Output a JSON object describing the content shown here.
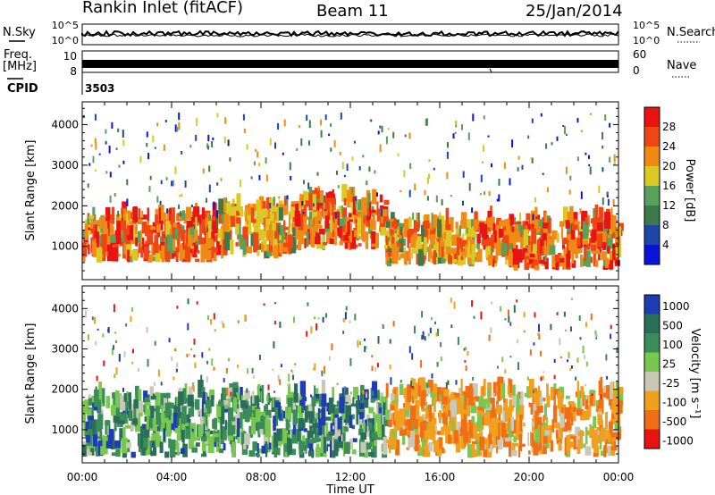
{
  "header": {
    "station": "Rankin Inlet (fitACF)",
    "beam": "Beam 11",
    "date": "25/Jan/2014"
  },
  "params": {
    "nsky_label": "N.Sky",
    "nsky_ticks": [
      "10^5",
      "10^0"
    ],
    "nsearch_label": "N.Search",
    "nsearch_ticks": [
      "10^5",
      "10^0"
    ],
    "freq_label_1": "Freq.",
    "freq_label_2": "[MHz]",
    "freq_ticks": [
      "10",
      "8"
    ],
    "nave_label": "Nave",
    "nave_ticks": [
      "60",
      "0"
    ],
    "cpid_label": "CPID",
    "cpid_value": "3503"
  },
  "colors": {
    "power_scale": [
      "#0a14d8",
      "#1e46a8",
      "#3c7a4a",
      "#5aa05a",
      "#dcc822",
      "#f08a14",
      "#f04614",
      "#e81414"
    ],
    "velocity_scale": [
      "#1e3cb4",
      "#2a6e5a",
      "#3c8c5a",
      "#78c850",
      "#c8c8b4",
      "#f0a01e",
      "#f06e14",
      "#e81414"
    ],
    "data_green": "#3c8c64",
    "data_orange": "#ec7a1a",
    "data_red": "#ea2a14"
  },
  "chart_data": [
    {
      "type": "heatmap",
      "panel": "power",
      "xlabel": "Time UT",
      "ylabel": "Slant Range [km]",
      "x_ticks": [
        "00:00",
        "04:00",
        "08:00",
        "12:00",
        "16:00",
        "20:00",
        "00:00"
      ],
      "x_range_hours": [
        0,
        24
      ],
      "y_ticks": [
        1000,
        2000,
        3000,
        4000
      ],
      "ylim": [
        180,
        4560
      ],
      "colorbar": {
        "label": "Power [dB]",
        "ticks": [
          4,
          8,
          12,
          16,
          20,
          24,
          28
        ],
        "range": [
          0,
          32
        ]
      },
      "echo_bands": [
        {
          "t_start": 0.0,
          "t_end": 6.0,
          "r_low": 600,
          "r_high": 1700,
          "level": "high"
        },
        {
          "t_start": 6.0,
          "t_end": 9.5,
          "r_low": 700,
          "r_high": 1900,
          "level": "medium"
        },
        {
          "t_start": 9.5,
          "t_end": 13.5,
          "r_low": 900,
          "r_high": 2100,
          "level": "high"
        },
        {
          "t_start": 13.5,
          "t_end": 17.5,
          "r_low": 500,
          "r_high": 1500,
          "level": "medium"
        },
        {
          "t_start": 17.5,
          "t_end": 24.0,
          "r_low": 400,
          "r_high": 1600,
          "level": "high"
        }
      ]
    },
    {
      "type": "heatmap",
      "panel": "velocity",
      "xlabel": "Time UT",
      "ylabel": "Slant Range [km]",
      "x_ticks": [
        "00:00",
        "04:00",
        "08:00",
        "12:00",
        "16:00",
        "20:00",
        "00:00"
      ],
      "x_range_hours": [
        0,
        24
      ],
      "y_ticks": [
        1000,
        2000,
        3000,
        4000
      ],
      "ylim": [
        180,
        4560
      ],
      "colorbar": {
        "label": "Velocity [m s⁻¹]",
        "ticks": [
          "1000",
          "500",
          "100",
          "25",
          "-25",
          "-100",
          "-500",
          "-1000"
        ]
      },
      "echo_bands": [
        {
          "t_start": 0.0,
          "t_end": 13.5,
          "r_low": 300,
          "r_high": 1800,
          "sign": "positive"
        },
        {
          "t_start": 13.5,
          "t_end": 24.0,
          "r_low": 300,
          "r_high": 1900,
          "sign": "negative"
        }
      ]
    }
  ]
}
